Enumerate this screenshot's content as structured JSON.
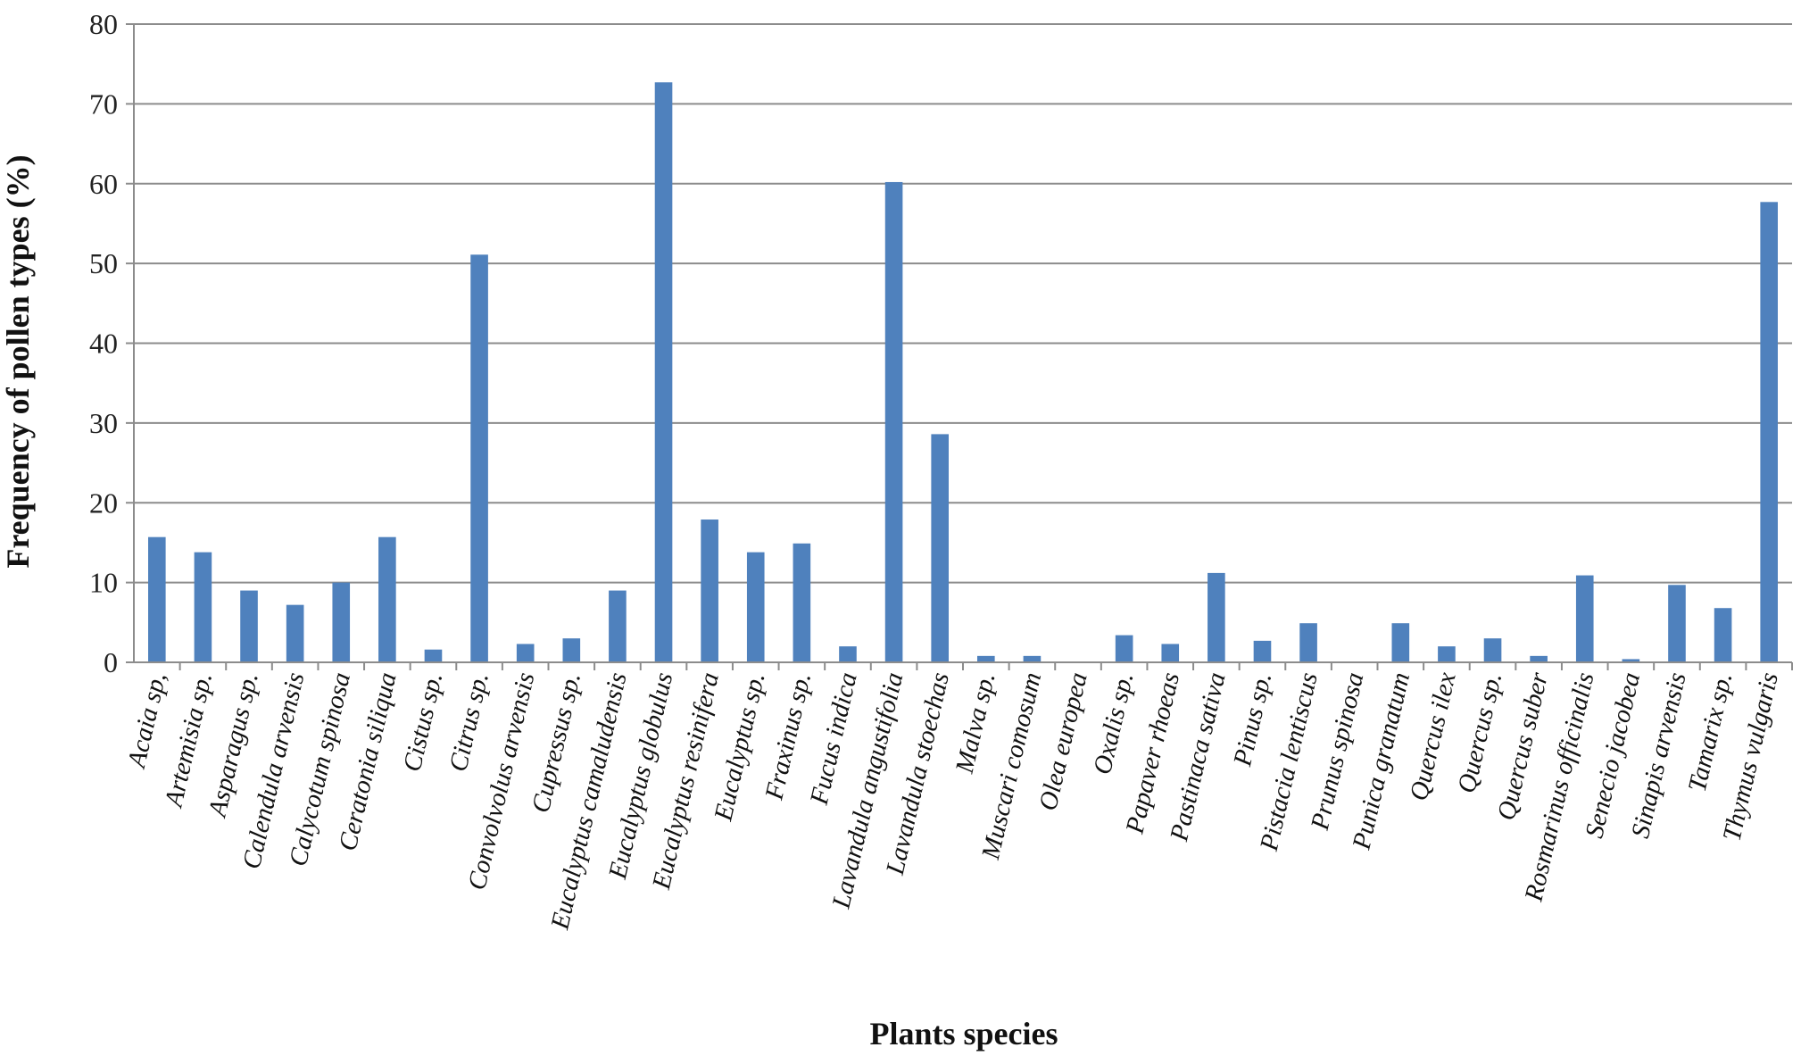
{
  "chart_data": {
    "type": "bar",
    "title": "",
    "xlabel": "Plants species",
    "ylabel": "Frequency of pollen types (%)",
    "ylim": [
      0,
      80
    ],
    "yticks": [
      "0",
      "10",
      "20",
      "30",
      "40",
      "50",
      "60",
      "70",
      "80"
    ],
    "grid": true,
    "legend": "none",
    "bar_color": "#4f81bd",
    "categories": [
      "Acaia sp,",
      "Artemisia sp.",
      "Asparagus sp.",
      "Calendula arvensis",
      "Calycotum spinosa",
      "Ceratonia siliqua",
      "Cistus sp.",
      "Citrus sp.",
      "Convolvolus arvensis",
      "Cupressus sp.",
      "Eucalyptus camaludensis",
      "Eucalyptus globulus",
      "Eucalyptus resinifera",
      "Eucalyptus sp.",
      "Fraxinus sp.",
      "Fucus indica",
      "Lavandula angustifolia",
      "Lavandula stoechas",
      "Malva sp.",
      "Muscari comosum",
      "Olea europea",
      "Oxalis sp.",
      "Papaver rhoeas",
      "Pastinaca sativa",
      "Pinus sp.",
      "Pistacia lentiscus",
      "Prunus spinosa",
      "Punica granatum",
      "Quercus ilex",
      "Quercus sp.",
      "Quercus suber",
      "Rosmarinus officinalis",
      "Senecio jacobea",
      "Sinapis arvensis",
      "Tamarix sp.",
      "Thymus vulgaris"
    ],
    "values": [
      15.7,
      13.8,
      9.0,
      7.2,
      10.0,
      15.7,
      1.6,
      51.1,
      2.3,
      3.0,
      9.0,
      72.7,
      17.9,
      13.8,
      14.9,
      2.0,
      60.2,
      28.6,
      0.8,
      0.8,
      0,
      3.4,
      2.3,
      11.2,
      2.7,
      4.9,
      0,
      4.9,
      2.0,
      3.0,
      0.8,
      10.9,
      0.4,
      9.7,
      6.8,
      57.7
    ]
  }
}
